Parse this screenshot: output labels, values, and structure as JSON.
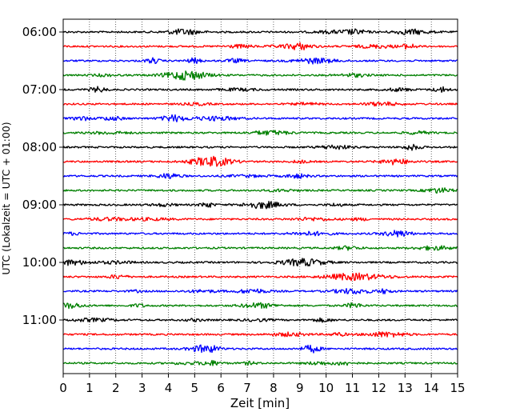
{
  "chart_data": {
    "type": "line",
    "subtype": "helicorder",
    "title": "",
    "xlabel": "Zeit  [min]",
    "ylabel": "UTC (Lokalzeit = UTC + 01:00)",
    "xlim": [
      0,
      15
    ],
    "x_ticks": [
      "0",
      "1",
      "2",
      "3",
      "4",
      "5",
      "6",
      "7",
      "8",
      "9",
      "10",
      "11",
      "12",
      "13",
      "14",
      "15"
    ],
    "y_tick_labels": [
      "06:00",
      "07:00",
      "08:00",
      "09:00",
      "10:00",
      "11:00"
    ],
    "grid": "vertical dotted at each minute",
    "trace_colors": [
      "#000000",
      "#ff0000",
      "#0000ff",
      "#008000"
    ],
    "series": [
      {
        "start": "06:00",
        "color": "#000000"
      },
      {
        "start": "06:15",
        "color": "#ff0000"
      },
      {
        "start": "06:30",
        "color": "#0000ff"
      },
      {
        "start": "06:45",
        "color": "#008000"
      },
      {
        "start": "07:00",
        "color": "#000000"
      },
      {
        "start": "07:15",
        "color": "#ff0000"
      },
      {
        "start": "07:30",
        "color": "#0000ff"
      },
      {
        "start": "07:45",
        "color": "#008000"
      },
      {
        "start": "08:00",
        "color": "#000000"
      },
      {
        "start": "08:15",
        "color": "#ff0000"
      },
      {
        "start": "08:30",
        "color": "#0000ff"
      },
      {
        "start": "08:45",
        "color": "#008000"
      },
      {
        "start": "09:00",
        "color": "#000000"
      },
      {
        "start": "09:15",
        "color": "#ff0000"
      },
      {
        "start": "09:30",
        "color": "#0000ff"
      },
      {
        "start": "09:45",
        "color": "#008000"
      },
      {
        "start": "10:00",
        "color": "#000000"
      },
      {
        "start": "10:15",
        "color": "#ff0000"
      },
      {
        "start": "10:30",
        "color": "#0000ff"
      },
      {
        "start": "10:45",
        "color": "#008000"
      },
      {
        "start": "11:00",
        "color": "#000000"
      },
      {
        "start": "11:15",
        "color": "#ff0000"
      },
      {
        "start": "11:30",
        "color": "#0000ff"
      },
      {
        "start": "11:45",
        "color": "#008000"
      }
    ]
  }
}
